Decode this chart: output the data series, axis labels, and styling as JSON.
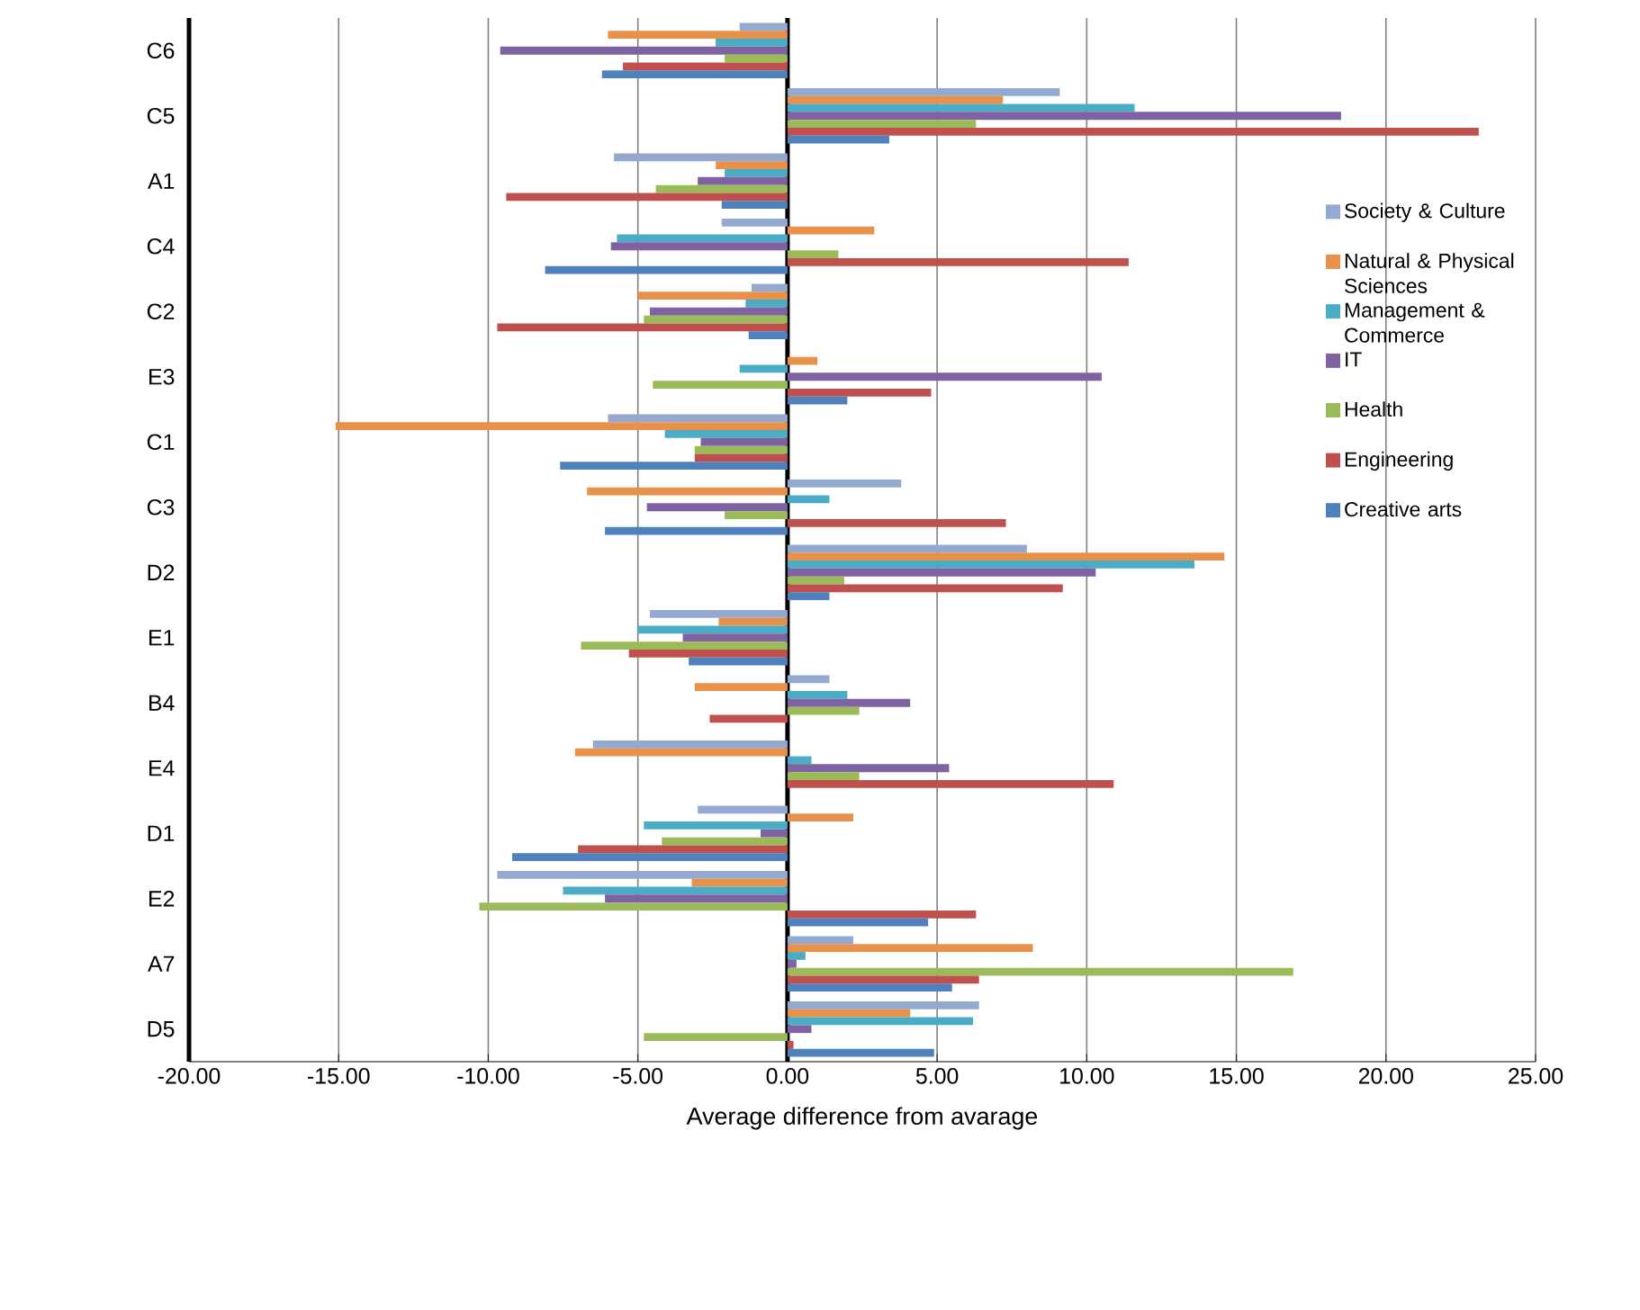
{
  "chart_data": {
    "type": "bar",
    "orientation": "horizontal",
    "xlabel": "Average difference from avarage",
    "categories": [
      "C6",
      "C5",
      "A1",
      "C4",
      "C2",
      "E3",
      "C1",
      "C3",
      "D2",
      "E1",
      "B4",
      "E4",
      "D1",
      "E2",
      "A7",
      "D5"
    ],
    "series": [
      {
        "name": "Society & Culture",
        "color": "#93a9cf",
        "values": [
          -1.6,
          9.1,
          -5.8,
          -2.2,
          -1.2,
          0,
          -6.0,
          3.8,
          8.0,
          -4.6,
          1.4,
          -6.5,
          -3.0,
          -9.7,
          2.2,
          6.4
        ]
      },
      {
        "name": "Natural & Physical Sciences",
        "color": "#e8914a",
        "values": [
          -6.0,
          7.2,
          -2.4,
          2.9,
          -5.0,
          1.0,
          -15.1,
          -6.7,
          14.6,
          -2.3,
          -3.1,
          -7.1,
          2.2,
          -3.2,
          8.2,
          4.1
        ]
      },
      {
        "name": "Management & Commerce",
        "color": "#4bacc6",
        "values": [
          -2.4,
          11.6,
          -2.1,
          -5.7,
          -1.4,
          -1.6,
          -4.1,
          1.4,
          13.6,
          -5.0,
          2.0,
          0.8,
          -4.8,
          -7.5,
          0.6,
          6.2
        ]
      },
      {
        "name": "IT",
        "color": "#7e62a1",
        "values": [
          -9.6,
          18.5,
          -3.0,
          -5.9,
          -4.6,
          10.5,
          -2.9,
          -4.7,
          10.3,
          -3.5,
          4.1,
          5.4,
          -0.9,
          -6.1,
          0.3,
          0.8
        ]
      },
      {
        "name": "Health",
        "color": "#9bbb59",
        "values": [
          -2.1,
          6.3,
          -4.4,
          1.7,
          -4.8,
          -4.5,
          -3.1,
          -2.1,
          1.9,
          -6.9,
          2.4,
          2.4,
          -4.2,
          -10.3,
          16.9,
          -4.8
        ]
      },
      {
        "name": "Engineering",
        "color": "#c0504d",
        "values": [
          -5.5,
          23.1,
          -9.4,
          11.4,
          -9.7,
          4.8,
          -3.1,
          7.3,
          9.2,
          -5.3,
          -2.6,
          10.9,
          -7.0,
          6.3,
          6.4,
          0.2
        ]
      },
      {
        "name": "Creative arts",
        "color": "#4f81bd",
        "values": [
          -6.2,
          3.4,
          -2.2,
          -8.1,
          -1.3,
          2.0,
          -7.6,
          -6.1,
          1.4,
          -3.3,
          0,
          0,
          -9.2,
          4.7,
          5.5,
          4.9
        ]
      }
    ],
    "xlim": [
      -20,
      25
    ],
    "xticks": [
      {
        "value": -20,
        "label": "-20.00"
      },
      {
        "value": -15,
        "label": "-15.00"
      },
      {
        "value": -10,
        "label": "-10.00"
      },
      {
        "value": -5,
        "label": "-5.00"
      },
      {
        "value": 0,
        "label": "0.00"
      },
      {
        "value": 5,
        "label": "5.00"
      },
      {
        "value": 10,
        "label": "10.00"
      },
      {
        "value": 15,
        "label": "15.00"
      },
      {
        "value": 20,
        "label": "20.00"
      },
      {
        "value": 25,
        "label": "25.00"
      }
    ],
    "grid": "x",
    "legend": "right"
  }
}
